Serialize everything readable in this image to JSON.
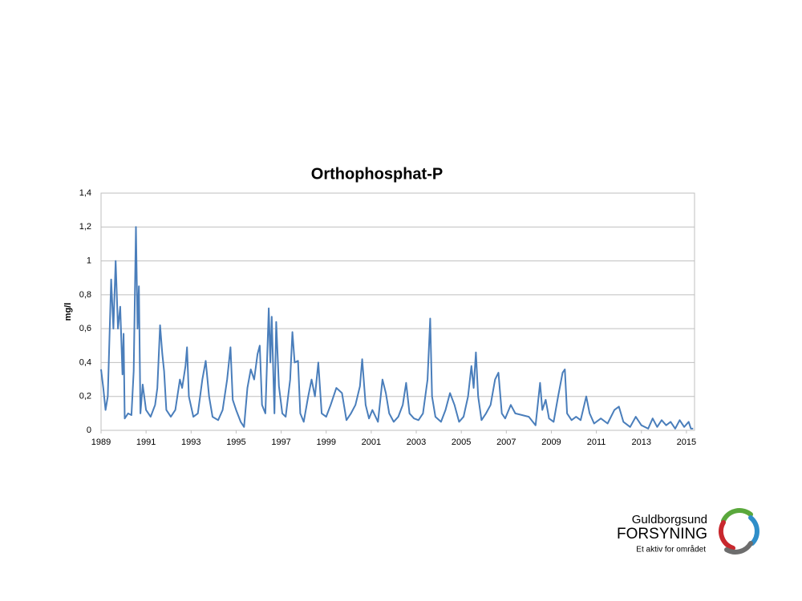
{
  "chart_data": {
    "type": "line",
    "title": "Orthophosphat-P",
    "y_label": "mg/l",
    "x": [
      1989.0,
      1989.1,
      1989.2,
      1989.3,
      1989.45,
      1989.55,
      1989.65,
      1989.75,
      1989.85,
      1989.95,
      1990.0,
      1990.05,
      1990.2,
      1990.35,
      1990.45,
      1990.55,
      1990.62,
      1990.68,
      1990.75,
      1990.85,
      1991.0,
      1991.2,
      1991.4,
      1991.5,
      1991.62,
      1991.72,
      1991.8,
      1991.9,
      1992.1,
      1992.3,
      1992.5,
      1992.6,
      1992.75,
      1992.82,
      1992.9,
      1993.1,
      1993.3,
      1993.5,
      1993.65,
      1993.8,
      1993.95,
      1994.2,
      1994.4,
      1994.6,
      1994.75,
      1994.85,
      1995.0,
      1995.2,
      1995.35,
      1995.5,
      1995.65,
      1995.8,
      1995.95,
      1996.05,
      1996.15,
      1996.3,
      1996.45,
      1996.52,
      1996.58,
      1996.7,
      1996.78,
      1996.9,
      1997.05,
      1997.2,
      1997.4,
      1997.5,
      1997.6,
      1997.75,
      1997.85,
      1998.0,
      1998.2,
      1998.35,
      1998.5,
      1998.65,
      1998.8,
      1999.0,
      1999.2,
      1999.45,
      1999.7,
      1999.9,
      2000.1,
      2000.3,
      2000.5,
      2000.6,
      2000.75,
      2000.9,
      2001.05,
      2001.3,
      2001.5,
      2001.65,
      2001.8,
      2002.0,
      2002.2,
      2002.4,
      2002.55,
      2002.7,
      2002.9,
      2003.1,
      2003.3,
      2003.5,
      2003.62,
      2003.7,
      2003.85,
      2004.1,
      2004.3,
      2004.5,
      2004.7,
      2004.9,
      2005.1,
      2005.3,
      2005.45,
      2005.55,
      2005.65,
      2005.75,
      2005.9,
      2006.1,
      2006.3,
      2006.5,
      2006.65,
      2006.8,
      2006.95,
      2007.2,
      2007.4,
      2007.7,
      2008.0,
      2008.3,
      2008.5,
      2008.6,
      2008.75,
      2008.9,
      2009.1,
      2009.3,
      2009.5,
      2009.6,
      2009.7,
      2009.9,
      2010.1,
      2010.3,
      2010.55,
      2010.7,
      2010.9,
      2011.2,
      2011.5,
      2011.8,
      2012.0,
      2012.2,
      2012.5,
      2012.75,
      2013.0,
      2013.3,
      2013.5,
      2013.7,
      2013.9,
      2014.1,
      2014.3,
      2014.5,
      2014.7,
      2014.9,
      2015.1,
      2015.2,
      2015.3
    ],
    "values": [
      0.36,
      0.25,
      0.12,
      0.2,
      0.89,
      0.6,
      1.0,
      0.6,
      0.73,
      0.33,
      0.57,
      0.07,
      0.1,
      0.09,
      0.35,
      1.2,
      0.6,
      0.85,
      0.1,
      0.27,
      0.12,
      0.08,
      0.15,
      0.25,
      0.62,
      0.45,
      0.35,
      0.12,
      0.08,
      0.12,
      0.3,
      0.25,
      0.38,
      0.49,
      0.2,
      0.08,
      0.1,
      0.3,
      0.41,
      0.2,
      0.08,
      0.06,
      0.12,
      0.3,
      0.49,
      0.18,
      0.12,
      0.05,
      0.02,
      0.25,
      0.36,
      0.3,
      0.45,
      0.5,
      0.15,
      0.1,
      0.72,
      0.4,
      0.67,
      0.1,
      0.64,
      0.26,
      0.1,
      0.08,
      0.3,
      0.58,
      0.4,
      0.41,
      0.1,
      0.05,
      0.2,
      0.3,
      0.2,
      0.4,
      0.1,
      0.08,
      0.15,
      0.25,
      0.22,
      0.06,
      0.1,
      0.15,
      0.26,
      0.42,
      0.15,
      0.07,
      0.12,
      0.05,
      0.3,
      0.22,
      0.1,
      0.05,
      0.08,
      0.15,
      0.28,
      0.1,
      0.07,
      0.06,
      0.1,
      0.3,
      0.66,
      0.2,
      0.08,
      0.05,
      0.12,
      0.22,
      0.15,
      0.05,
      0.08,
      0.2,
      0.38,
      0.25,
      0.46,
      0.2,
      0.06,
      0.1,
      0.15,
      0.3,
      0.34,
      0.1,
      0.07,
      0.15,
      0.1,
      0.09,
      0.08,
      0.03,
      0.28,
      0.12,
      0.18,
      0.07,
      0.05,
      0.2,
      0.34,
      0.36,
      0.1,
      0.06,
      0.08,
      0.06,
      0.2,
      0.1,
      0.04,
      0.07,
      0.04,
      0.12,
      0.14,
      0.05,
      0.02,
      0.08,
      0.03,
      0.01,
      0.07,
      0.02,
      0.06,
      0.03,
      0.05,
      0.01,
      0.06,
      0.02,
      0.05,
      0.01,
      0.01
    ],
    "color": "#4a7ebb",
    "xlim": [
      1989,
      2015.36
    ],
    "xticks": [
      1989,
      1991,
      1993,
      1995,
      1997,
      1999,
      2001,
      2003,
      2005,
      2007,
      2009,
      2011,
      2013,
      2015
    ],
    "ylim": [
      0,
      1.4
    ],
    "yticks": [
      0,
      {
        "value": 0.2,
        "label": "0,2"
      },
      {
        "value": 0.4,
        "label": "0,4"
      },
      {
        "value": 0.6,
        "label": "0,6"
      },
      {
        "value": 0.8,
        "label": "0,8"
      },
      1,
      {
        "value": 1.2,
        "label": "1,2"
      },
      {
        "value": 1.4,
        "label": "1,4"
      }
    ],
    "grid": true
  },
  "logo": {
    "name": "Guldborgsund",
    "company": "FORSYNING",
    "tagline": "Et aktiv for området"
  }
}
